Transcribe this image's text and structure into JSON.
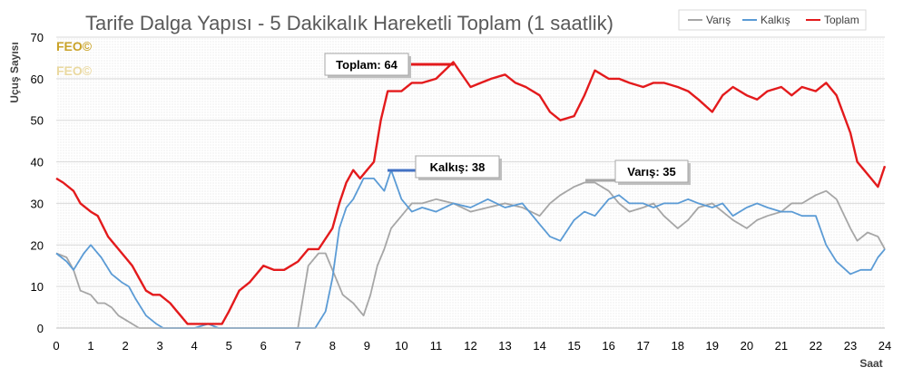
{
  "chart_data": {
    "type": "line",
    "title": "Tarife Dalga Yapısı - 5 Dakikalık Hareketli Toplam (1 saatlik)",
    "xlabel": "Saat",
    "ylabel": "Uçuş Sayısı",
    "xlim": [
      0,
      24
    ],
    "ylim": [
      0,
      70
    ],
    "x_ticks": [
      "0",
      "1",
      "2",
      "3",
      "4",
      "5",
      "6",
      "7",
      "8",
      "9",
      "10",
      "11",
      "12",
      "13",
      "14",
      "15",
      "16",
      "17",
      "18",
      "19",
      "20",
      "21",
      "22",
      "23",
      "24"
    ],
    "y_ticks": [
      "0",
      "10",
      "20",
      "30",
      "40",
      "50",
      "60",
      "70"
    ],
    "legend_position": "top-right",
    "watermark": [
      "FEO©",
      "FEO©"
    ],
    "series": [
      {
        "name": "Varış",
        "color": "#a6a6a6",
        "points": [
          [
            0,
            18
          ],
          [
            0.3,
            17
          ],
          [
            0.5,
            14
          ],
          [
            0.7,
            9
          ],
          [
            1,
            8
          ],
          [
            1.2,
            6
          ],
          [
            1.4,
            6
          ],
          [
            1.6,
            5
          ],
          [
            1.8,
            3
          ],
          [
            2,
            2
          ],
          [
            2.2,
            1
          ],
          [
            2.4,
            0
          ],
          [
            3,
            0
          ],
          [
            6,
            0
          ],
          [
            7,
            0
          ],
          [
            7.3,
            15
          ],
          [
            7.6,
            18
          ],
          [
            7.8,
            18
          ],
          [
            8,
            14
          ],
          [
            8.3,
            8
          ],
          [
            8.6,
            6
          ],
          [
            8.9,
            3
          ],
          [
            9.1,
            8
          ],
          [
            9.3,
            15
          ],
          [
            9.5,
            19
          ],
          [
            9.7,
            24
          ],
          [
            10,
            27
          ],
          [
            10.3,
            30
          ],
          [
            10.6,
            30
          ],
          [
            11,
            31
          ],
          [
            11.5,
            30
          ],
          [
            12,
            28
          ],
          [
            12.5,
            29
          ],
          [
            13,
            30
          ],
          [
            13.5,
            29
          ],
          [
            14,
            27
          ],
          [
            14.3,
            30
          ],
          [
            14.6,
            32
          ],
          [
            15,
            34
          ],
          [
            15.3,
            35
          ],
          [
            15.6,
            35
          ],
          [
            16,
            33
          ],
          [
            16.3,
            30
          ],
          [
            16.6,
            28
          ],
          [
            17,
            29
          ],
          [
            17.3,
            30
          ],
          [
            17.6,
            27
          ],
          [
            18,
            24
          ],
          [
            18.3,
            26
          ],
          [
            18.6,
            29
          ],
          [
            19,
            30
          ],
          [
            19.3,
            28
          ],
          [
            19.6,
            26
          ],
          [
            20,
            24
          ],
          [
            20.3,
            26
          ],
          [
            20.6,
            27
          ],
          [
            21,
            28
          ],
          [
            21.3,
            30
          ],
          [
            21.6,
            30
          ],
          [
            22,
            32
          ],
          [
            22.3,
            33
          ],
          [
            22.6,
            31
          ],
          [
            23,
            24
          ],
          [
            23.2,
            21
          ],
          [
            23.5,
            23
          ],
          [
            23.8,
            22
          ],
          [
            24,
            19
          ]
        ]
      },
      {
        "name": "Kalkış",
        "color": "#5b9bd5",
        "points": [
          [
            0,
            18
          ],
          [
            0.3,
            16
          ],
          [
            0.5,
            14
          ],
          [
            0.8,
            18
          ],
          [
            1,
            20
          ],
          [
            1.3,
            17
          ],
          [
            1.6,
            13
          ],
          [
            1.9,
            11
          ],
          [
            2.1,
            10
          ],
          [
            2.3,
            7
          ],
          [
            2.6,
            3
          ],
          [
            2.9,
            1
          ],
          [
            3.1,
            0
          ],
          [
            4,
            0
          ],
          [
            4.4,
            1
          ],
          [
            4.7,
            0
          ],
          [
            5,
            0
          ],
          [
            7,
            0
          ],
          [
            7.5,
            0
          ],
          [
            7.8,
            4
          ],
          [
            8,
            12
          ],
          [
            8.2,
            24
          ],
          [
            8.4,
            29
          ],
          [
            8.6,
            31
          ],
          [
            8.9,
            36
          ],
          [
            9.2,
            36
          ],
          [
            9.5,
            33
          ],
          [
            9.7,
            38
          ],
          [
            10,
            31
          ],
          [
            10.3,
            28
          ],
          [
            10.6,
            29
          ],
          [
            11,
            28
          ],
          [
            11.5,
            30
          ],
          [
            12,
            29
          ],
          [
            12.5,
            31
          ],
          [
            13,
            29
          ],
          [
            13.5,
            30
          ],
          [
            14,
            25
          ],
          [
            14.3,
            22
          ],
          [
            14.6,
            21
          ],
          [
            15,
            26
          ],
          [
            15.3,
            28
          ],
          [
            15.6,
            27
          ],
          [
            16,
            31
          ],
          [
            16.3,
            32
          ],
          [
            16.6,
            30
          ],
          [
            17,
            30
          ],
          [
            17.3,
            29
          ],
          [
            17.6,
            30
          ],
          [
            18,
            30
          ],
          [
            18.3,
            31
          ],
          [
            18.6,
            30
          ],
          [
            19,
            29
          ],
          [
            19.3,
            30
          ],
          [
            19.6,
            27
          ],
          [
            20,
            29
          ],
          [
            20.3,
            30
          ],
          [
            20.6,
            29
          ],
          [
            21,
            28
          ],
          [
            21.3,
            28
          ],
          [
            21.6,
            27
          ],
          [
            22,
            27
          ],
          [
            22.3,
            20
          ],
          [
            22.6,
            16
          ],
          [
            23,
            13
          ],
          [
            23.3,
            14
          ],
          [
            23.6,
            14
          ],
          [
            23.8,
            17
          ],
          [
            24,
            19
          ]
        ]
      },
      {
        "name": "Toplam",
        "color": "#e31a1c",
        "points": [
          [
            0,
            36
          ],
          [
            0.2,
            35
          ],
          [
            0.5,
            33
          ],
          [
            0.7,
            30
          ],
          [
            1,
            28
          ],
          [
            1.2,
            27
          ],
          [
            1.5,
            22
          ],
          [
            1.7,
            20
          ],
          [
            2,
            17
          ],
          [
            2.2,
            15
          ],
          [
            2.4,
            12
          ],
          [
            2.6,
            9
          ],
          [
            2.8,
            8
          ],
          [
            3,
            8
          ],
          [
            3.3,
            6
          ],
          [
            3.5,
            4
          ],
          [
            3.8,
            1
          ],
          [
            4,
            1
          ],
          [
            4.5,
            1
          ],
          [
            4.8,
            1
          ],
          [
            5,
            4
          ],
          [
            5.3,
            9
          ],
          [
            5.6,
            11
          ],
          [
            6,
            15
          ],
          [
            6.3,
            14
          ],
          [
            6.6,
            14
          ],
          [
            7,
            16
          ],
          [
            7.3,
            19
          ],
          [
            7.6,
            19
          ],
          [
            8,
            24
          ],
          [
            8.2,
            30
          ],
          [
            8.4,
            35
          ],
          [
            8.6,
            38
          ],
          [
            8.8,
            36
          ],
          [
            9,
            38
          ],
          [
            9.2,
            40
          ],
          [
            9.4,
            50
          ],
          [
            9.6,
            57
          ],
          [
            9.8,
            57
          ],
          [
            10,
            57
          ],
          [
            10.3,
            59
          ],
          [
            10.6,
            59
          ],
          [
            11,
            60
          ],
          [
            11.5,
            64
          ],
          [
            12,
            58
          ],
          [
            12.3,
            59
          ],
          [
            12.6,
            60
          ],
          [
            13,
            61
          ],
          [
            13.3,
            59
          ],
          [
            13.6,
            58
          ],
          [
            14,
            56
          ],
          [
            14.3,
            52
          ],
          [
            14.6,
            50
          ],
          [
            15,
            51
          ],
          [
            15.3,
            56
          ],
          [
            15.6,
            62
          ],
          [
            16,
            60
          ],
          [
            16.3,
            60
          ],
          [
            16.6,
            59
          ],
          [
            17,
            58
          ],
          [
            17.3,
            59
          ],
          [
            17.6,
            59
          ],
          [
            18,
            58
          ],
          [
            18.3,
            57
          ],
          [
            18.6,
            55
          ],
          [
            19,
            52
          ],
          [
            19.3,
            56
          ],
          [
            19.6,
            58
          ],
          [
            20,
            56
          ],
          [
            20.3,
            55
          ],
          [
            20.6,
            57
          ],
          [
            21,
            58
          ],
          [
            21.3,
            56
          ],
          [
            21.6,
            58
          ],
          [
            22,
            57
          ],
          [
            22.3,
            59
          ],
          [
            22.6,
            56
          ],
          [
            23,
            47
          ],
          [
            23.2,
            40
          ],
          [
            23.4,
            38
          ],
          [
            23.6,
            36
          ],
          [
            23.8,
            34
          ],
          [
            24,
            39
          ]
        ]
      }
    ],
    "annotations": [
      {
        "label": "Toplam: 64",
        "series": "Toplam",
        "value": 64
      },
      {
        "label": "Kalkış: 38",
        "series": "Kalkış",
        "value": 38
      },
      {
        "label": "Varış: 35",
        "series": "Varış",
        "value": 35
      }
    ]
  }
}
